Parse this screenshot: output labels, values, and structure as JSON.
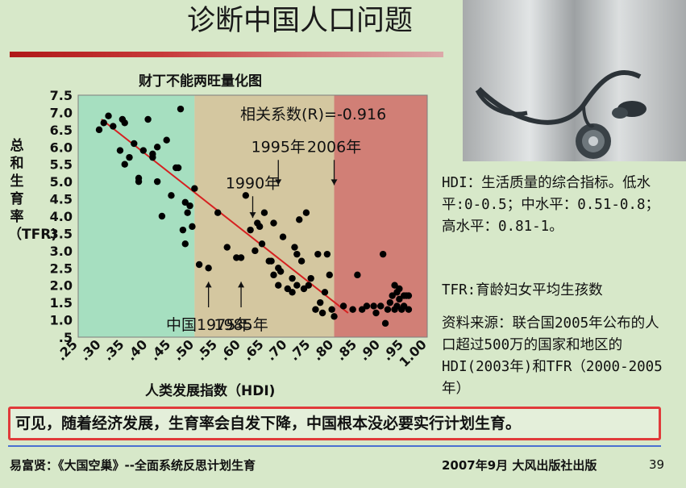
{
  "slide": {
    "title": "诊断中国人口问题",
    "page_number": "39",
    "footer_left": "易富贤：《大国空巢》--全面系统反思计划生育",
    "footer_right": "2007年9月 大风出版社出版",
    "conclusion": "可见，随着经济发展，生育率会自发下降，中国根本没必要实行计划生育。",
    "hdi_note": "HDI：生活质量的综合指标。低水平:0-0.5；中水平：0.51-0.8；高水平：0.81-1。",
    "tfr_note": "TFR:育龄妇女平均生孩数",
    "source_note": "资料来源：联合国2005年公布的人口超过500万的国家和地区的HDI(2003年)和TFR（2000-2005年）",
    "colors": {
      "background": "#d7e8c9",
      "title_bar": "#b01818",
      "conclusion_border": "#e03a3a",
      "footer_rule": "#4a6fd1"
    }
  },
  "chart_data": {
    "type": "scatter",
    "title": "财丁不能两旺量化图",
    "xlabel": "人类发展指数（HDI)",
    "ylabel": "总和生育率（TFR)",
    "xlim": [
      0.25,
      1.0
    ],
    "ylim": [
      0.5,
      7.5
    ],
    "x_ticks": [
      ".25",
      ".30",
      ".35",
      ".40",
      ".45",
      ".50",
      ".55",
      ".60",
      ".65",
      ".70",
      ".75",
      ".80",
      ".85",
      ".90",
      ".95",
      "1.00"
    ],
    "y_ticks": [
      "7.5",
      "7.0",
      "6.5",
      "6.0",
      "5.5",
      "5.0",
      "4.5",
      "4.0",
      "3.5",
      "3.0",
      "2.5",
      "2.0",
      "1.5",
      "1.0",
      ".5"
    ],
    "zones": [
      {
        "from": 0.25,
        "to": 0.5,
        "color": "#a6dfc0"
      },
      {
        "from": 0.5,
        "to": 0.8,
        "color": "#d4c7a0"
      },
      {
        "from": 0.8,
        "to": 1.0,
        "color": "#d17f76"
      }
    ],
    "correlation_label": "相关系数(R)=-0.916",
    "trend_line": {
      "from": [
        0.3,
        6.8
      ],
      "to": [
        0.83,
        1.2
      ],
      "color": "#d62020"
    },
    "annotations": [
      {
        "text": "1990年",
        "x": 0.625,
        "y": 4.95,
        "arrow_to": [
          0.625,
          3.95
        ],
        "direction": "down"
      },
      {
        "text": "1995年",
        "x": 0.68,
        "y": 6.0,
        "arrow_to": [
          0.68,
          4.9
        ],
        "direction": "down"
      },
      {
        "text": "2006年",
        "x": 0.8,
        "y": 6.0,
        "arrow_to": [
          0.8,
          4.9
        ],
        "direction": "down"
      },
      {
        "text": "中国1975年",
        "x": 0.53,
        "y": 0.85,
        "arrow_to": [
          0.53,
          2.1
        ],
        "direction": "up"
      },
      {
        "text": "1985年",
        "x": 0.6,
        "y": 0.85,
        "arrow_to": [
          0.6,
          2.1
        ],
        "direction": "up"
      }
    ],
    "series": [
      {
        "color": "#000000",
        "points": [
          [
            0.295,
            6.5
          ],
          [
            0.305,
            6.7
          ],
          [
            0.315,
            6.9
          ],
          [
            0.325,
            6.6
          ],
          [
            0.34,
            5.9
          ],
          [
            0.345,
            6.8
          ],
          [
            0.35,
            6.7
          ],
          [
            0.35,
            5.5
          ],
          [
            0.36,
            5.7
          ],
          [
            0.37,
            6.1
          ],
          [
            0.38,
            5.0
          ],
          [
            0.38,
            5.1
          ],
          [
            0.39,
            5.9
          ],
          [
            0.4,
            6.8
          ],
          [
            0.41,
            5.8
          ],
          [
            0.41,
            5.7
          ],
          [
            0.42,
            6.0
          ],
          [
            0.42,
            5.0
          ],
          [
            0.43,
            4.0
          ],
          [
            0.44,
            6.2
          ],
          [
            0.45,
            4.6
          ],
          [
            0.46,
            5.4
          ],
          [
            0.465,
            5.4
          ],
          [
            0.47,
            7.1
          ],
          [
            0.475,
            3.6
          ],
          [
            0.48,
            4.4
          ],
          [
            0.48,
            3.2
          ],
          [
            0.485,
            4.1
          ],
          [
            0.49,
            4.3
          ],
          [
            0.495,
            3.7
          ],
          [
            0.5,
            4.8
          ],
          [
            0.51,
            2.6
          ],
          [
            0.53,
            2.5
          ],
          [
            0.55,
            4.1
          ],
          [
            0.57,
            3.1
          ],
          [
            0.59,
            2.8
          ],
          [
            0.6,
            2.8
          ],
          [
            0.61,
            4.6
          ],
          [
            0.62,
            3.6
          ],
          [
            0.63,
            3.0
          ],
          [
            0.635,
            3.8
          ],
          [
            0.64,
            3.7
          ],
          [
            0.645,
            3.2
          ],
          [
            0.65,
            4.1
          ],
          [
            0.66,
            2.7
          ],
          [
            0.665,
            2.7
          ],
          [
            0.67,
            3.8
          ],
          [
            0.67,
            2.3
          ],
          [
            0.68,
            2.0
          ],
          [
            0.68,
            2.5
          ],
          [
            0.685,
            2.4
          ],
          [
            0.69,
            3.4
          ],
          [
            0.7,
            1.9
          ],
          [
            0.71,
            2.2
          ],
          [
            0.71,
            1.8
          ],
          [
            0.715,
            3.1
          ],
          [
            0.72,
            2.9
          ],
          [
            0.72,
            2.0
          ],
          [
            0.725,
            3.9
          ],
          [
            0.73,
            2.7
          ],
          [
            0.735,
            1.9
          ],
          [
            0.74,
            4.1
          ],
          [
            0.745,
            2.0
          ],
          [
            0.75,
            2.2
          ],
          [
            0.76,
            1.3
          ],
          [
            0.765,
            2.9
          ],
          [
            0.77,
            1.5
          ],
          [
            0.775,
            1.2
          ],
          [
            0.78,
            1.8
          ],
          [
            0.785,
            2.9
          ],
          [
            0.79,
            2.3
          ],
          [
            0.795,
            1.3
          ],
          [
            0.8,
            1.1
          ],
          [
            0.82,
            1.4
          ],
          [
            0.84,
            1.3
          ],
          [
            0.85,
            2.3
          ],
          [
            0.86,
            1.3
          ],
          [
            0.87,
            1.4
          ],
          [
            0.885,
            1.4
          ],
          [
            0.89,
            1.2
          ],
          [
            0.9,
            1.4
          ],
          [
            0.905,
            2.9
          ],
          [
            0.91,
            0.9
          ],
          [
            0.915,
            1.3
          ],
          [
            0.92,
            1.5
          ],
          [
            0.925,
            1.7
          ],
          [
            0.93,
            2.0
          ],
          [
            0.93,
            1.3
          ],
          [
            0.935,
            1.4
          ],
          [
            0.935,
            1.8
          ],
          [
            0.94,
            1.9
          ],
          [
            0.94,
            1.6
          ],
          [
            0.945,
            1.3
          ],
          [
            0.95,
            1.7
          ],
          [
            0.95,
            1.4
          ],
          [
            0.955,
            1.7
          ],
          [
            0.96,
            1.7
          ],
          [
            0.96,
            1.3
          ]
        ]
      }
    ]
  }
}
